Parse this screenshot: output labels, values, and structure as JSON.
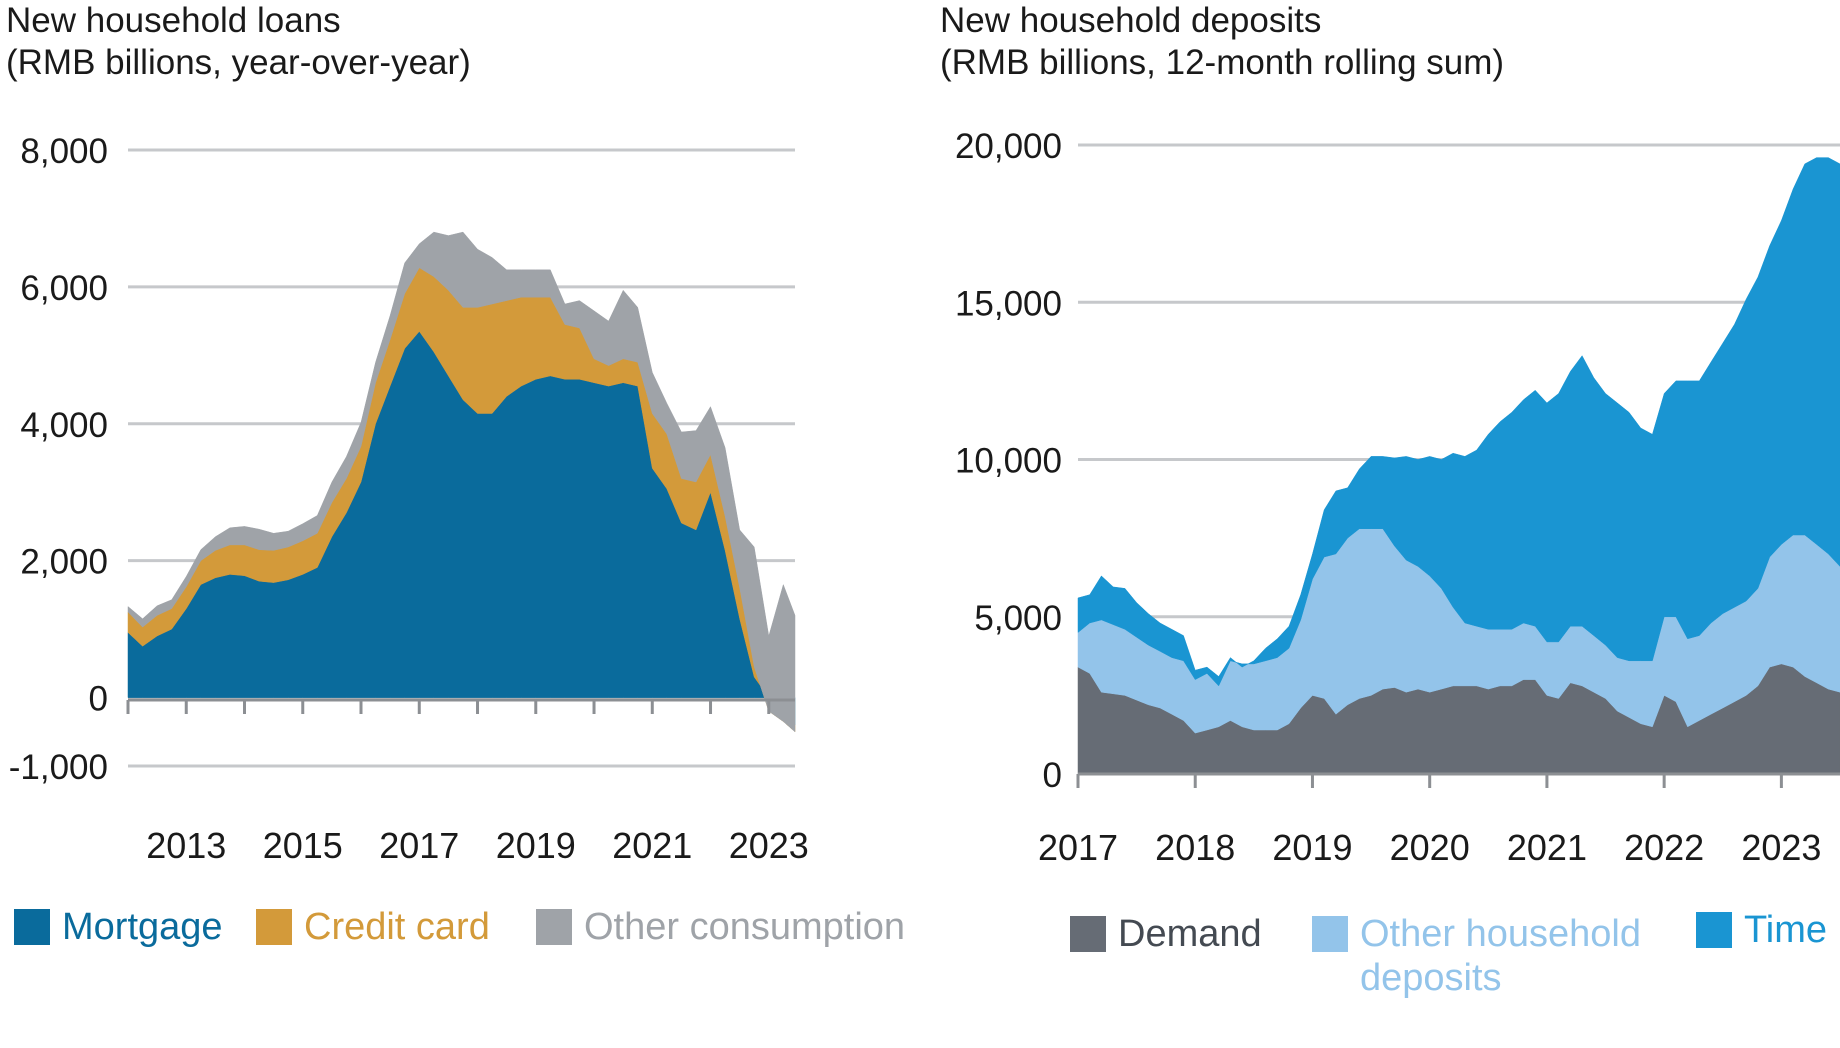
{
  "chart_data": [
    {
      "type": "area",
      "title": "New household loans",
      "subtitle": "(RMB billions, year-over-year)",
      "xlabel": "",
      "ylabel": "",
      "ylim": [
        -1000,
        8000
      ],
      "yticks": [
        -1000,
        0,
        2000,
        4000,
        6000,
        8000
      ],
      "ytick_labels": [
        "-1,000",
        "0",
        "2,000",
        "4,000",
        "6,000",
        "8,000"
      ],
      "xlim": [
        2012.0,
        2023.45
      ],
      "xticks": [
        2013,
        2015,
        2017,
        2019,
        2021,
        2023
      ],
      "xtick_labels": [
        "2013",
        "2015",
        "2017",
        "2019",
        "2021",
        "2023"
      ],
      "xminor": [
        2012,
        2013,
        2014,
        2015,
        2016,
        2017,
        2018,
        2019,
        2020,
        2021,
        2022,
        2023
      ],
      "grid": true,
      "legend_position": "bottom",
      "stacked": true,
      "x": [
        2012.0,
        2012.25,
        2012.5,
        2012.75,
        2013.0,
        2013.25,
        2013.5,
        2013.75,
        2014.0,
        2014.25,
        2014.5,
        2014.75,
        2015.0,
        2015.25,
        2015.5,
        2015.75,
        2016.0,
        2016.25,
        2016.5,
        2016.75,
        2017.0,
        2017.25,
        2017.5,
        2017.75,
        2018.0,
        2018.25,
        2018.5,
        2018.75,
        2019.0,
        2019.25,
        2019.5,
        2019.75,
        2020.0,
        2020.25,
        2020.5,
        2020.75,
        2021.0,
        2021.25,
        2021.5,
        2021.75,
        2022.0,
        2022.25,
        2022.5,
        2022.75,
        2023.0,
        2023.25,
        2023.45
      ],
      "series": [
        {
          "name": "Mortgage",
          "color": "#0a6b9c",
          "values": [
            950,
            750,
            900,
            1000,
            1300,
            1650,
            1750,
            1800,
            1780,
            1700,
            1680,
            1720,
            1800,
            1900,
            2350,
            2700,
            3150,
            4000,
            4550,
            5100,
            5350,
            5050,
            4700,
            4350,
            4150,
            4150,
            4400,
            4550,
            4650,
            4700,
            4650,
            4650,
            4600,
            4550,
            4600,
            4550,
            3350,
            3050,
            2550,
            2450,
            3000,
            2150,
            1150,
            300,
            0,
            -200,
            -400
          ]
        },
        {
          "name": "Credit card",
          "color": "#d39a3a",
          "values": [
            300,
            280,
            300,
            300,
            320,
            350,
            400,
            430,
            450,
            460,
            470,
            480,
            490,
            500,
            500,
            500,
            520,
            600,
            680,
            800,
            930,
            1100,
            1250,
            1350,
            1550,
            1600,
            1400,
            1300,
            1200,
            1150,
            800,
            750,
            350,
            300,
            350,
            350,
            800,
            800,
            650,
            700,
            550,
            500,
            450,
            150,
            -200,
            -150,
            -100
          ]
        },
        {
          "name": "Other consumption",
          "color": "#9fa3a8",
          "values": [
            80,
            120,
            140,
            130,
            150,
            160,
            200,
            250,
            270,
            300,
            250,
            230,
            250,
            260,
            300,
            320,
            350,
            300,
            350,
            450,
            350,
            650,
            800,
            1100,
            850,
            680,
            450,
            400,
            400,
            400,
            300,
            400,
            700,
            650,
            1000,
            800,
            600,
            450,
            680,
            750,
            700,
            1000,
            850,
            1750,
            1100,
            2000,
            1700
          ]
        }
      ]
    },
    {
      "type": "area",
      "title": "New household deposits",
      "subtitle": "(RMB billions, 12-month rolling sum)",
      "xlabel": "",
      "ylabel": "",
      "ylim": [
        0,
        20000
      ],
      "yticks": [
        0,
        5000,
        10000,
        15000,
        20000
      ],
      "ytick_labels": [
        "0",
        "5,000",
        "10,000",
        "15,000",
        "20,000"
      ],
      "xlim": [
        2017.0,
        2023.5
      ],
      "xticks": [
        2017,
        2018,
        2019,
        2020,
        2021,
        2022,
        2023
      ],
      "xtick_labels": [
        "2017",
        "2018",
        "2019",
        "2020",
        "2021",
        "2022",
        "2023"
      ],
      "grid": true,
      "legend_position": "bottom",
      "stacked": true,
      "x": [
        2017.0,
        2017.1,
        2017.2,
        2017.3,
        2017.4,
        2017.5,
        2017.6,
        2017.7,
        2017.8,
        2017.9,
        2018.0,
        2018.1,
        2018.2,
        2018.3,
        2018.4,
        2018.5,
        2018.6,
        2018.7,
        2018.8,
        2018.9,
        2019.0,
        2019.1,
        2019.2,
        2019.3,
        2019.4,
        2019.5,
        2019.6,
        2019.7,
        2019.8,
        2019.9,
        2020.0,
        2020.1,
        2020.2,
        2020.3,
        2020.4,
        2020.5,
        2020.6,
        2020.7,
        2020.8,
        2020.9,
        2021.0,
        2021.1,
        2021.2,
        2021.3,
        2021.4,
        2021.5,
        2021.6,
        2021.7,
        2021.8,
        2021.9,
        2022.0,
        2022.1,
        2022.2,
        2022.3,
        2022.4,
        2022.5,
        2022.6,
        2022.7,
        2022.8,
        2022.9,
        2023.0,
        2023.1,
        2023.2,
        2023.3,
        2023.4,
        2023.5
      ],
      "series": [
        {
          "name": "Demand",
          "color": "#666c75",
          "values": [
            3400,
            3200,
            2600,
            2550,
            2500,
            2350,
            2200,
            2100,
            1900,
            1700,
            1300,
            1400,
            1500,
            1700,
            1500,
            1400,
            1400,
            1400,
            1600,
            2100,
            2500,
            2400,
            1900,
            2200,
            2400,
            2500,
            2700,
            2750,
            2600,
            2700,
            2600,
            2700,
            2800,
            2800,
            2800,
            2700,
            2800,
            2800,
            3000,
            3000,
            2500,
            2400,
            2900,
            2800,
            2600,
            2400,
            2000,
            1800,
            1600,
            1500,
            2500,
            2300,
            1500,
            1700,
            1900,
            2100,
            2300,
            2500,
            2800,
            3400,
            3500,
            3400,
            3100,
            2900,
            2700,
            2600
          ]
        },
        {
          "name": "Other household deposits",
          "color": "#93c4ea",
          "values": [
            1100,
            1600,
            2300,
            2200,
            2100,
            2000,
            1900,
            1800,
            1800,
            1900,
            1700,
            1800,
            1300,
            1900,
            2000,
            2100,
            2200,
            2300,
            2400,
            2800,
            3700,
            4500,
            5100,
            5300,
            5400,
            5300,
            5100,
            4500,
            4200,
            3900,
            3700,
            3200,
            2500,
            2000,
            1900,
            1900,
            1800,
            1800,
            1800,
            1700,
            1700,
            1800,
            1800,
            1900,
            1800,
            1700,
            1700,
            1800,
            2000,
            2100,
            2500,
            2700,
            2800,
            2700,
            2900,
            3000,
            3000,
            3000,
            3100,
            3500,
            3800,
            4200,
            4500,
            4400,
            4300,
            4000
          ]
        },
        {
          "name": "Time",
          "color": "#1a95d2",
          "values": [
            1100,
            900,
            1400,
            1200,
            1300,
            1100,
            1000,
            900,
            900,
            800,
            300,
            200,
            300,
            100,
            -100,
            100,
            400,
            600,
            700,
            800,
            800,
            1500,
            2000,
            1600,
            1900,
            2300,
            2300,
            2800,
            3300,
            3400,
            3800,
            4100,
            4900,
            5300,
            5600,
            6200,
            6600,
            6900,
            7100,
            7500,
            7600,
            7900,
            8100,
            8600,
            8200,
            8000,
            8100,
            7900,
            7400,
            7200,
            7100,
            7500,
            8200,
            8100,
            8300,
            8600,
            9000,
            9600,
            9900,
            9900,
            10300,
            11000,
            11800,
            12300,
            12600,
            12800
          ]
        }
      ]
    }
  ]
}
